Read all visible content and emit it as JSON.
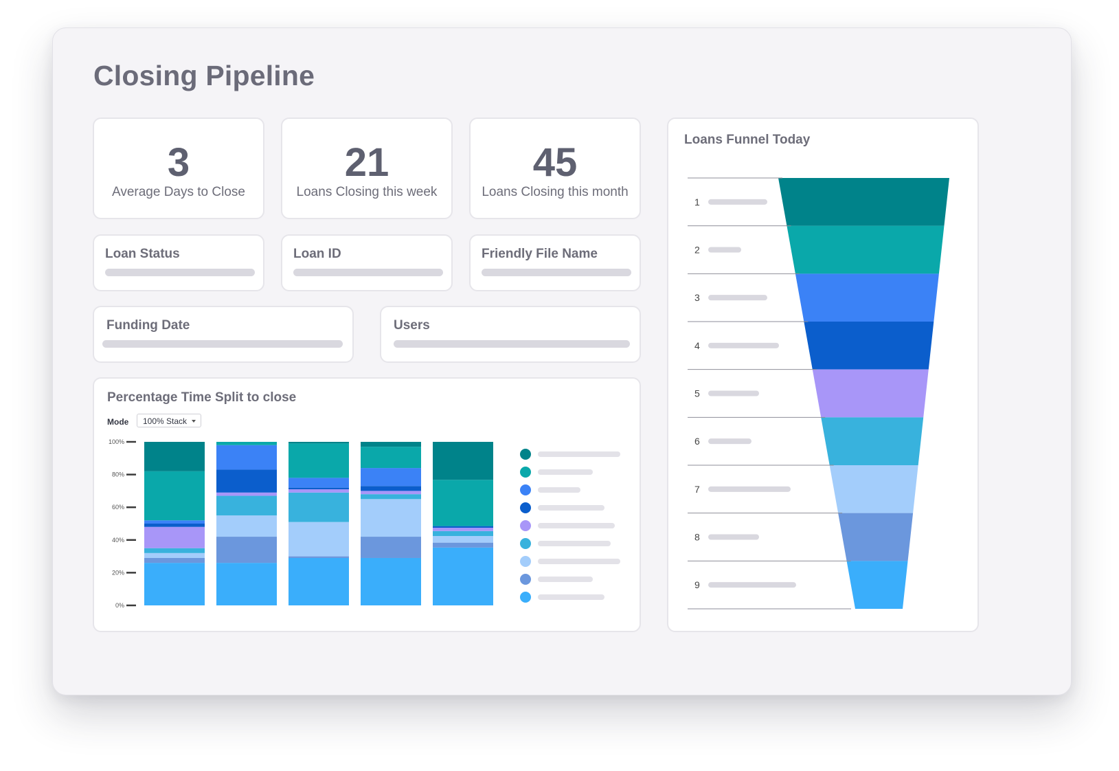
{
  "page": {
    "title": "Closing Pipeline"
  },
  "kpis": [
    {
      "value": "3",
      "label": "Average Days to Close"
    },
    {
      "value": "21",
      "label": "Loans Closing this week"
    },
    {
      "value": "45",
      "label": "Loans Closing this month"
    }
  ],
  "filters": [
    {
      "label": "Loan Status"
    },
    {
      "label": "Loan ID"
    },
    {
      "label": "Friendly File Name"
    },
    {
      "label": "Funding Date"
    },
    {
      "label": "Users"
    }
  ],
  "colors": {
    "s1": "#00838a",
    "s2": "#0aa8aa",
    "s3": "#3b82f6",
    "s4": "#0b5ecc",
    "s5": "#a896f8",
    "s6": "#38b2dd",
    "s7": "#a3cdfb",
    "s8": "#6b97dd",
    "s9": "#3aaefb"
  },
  "chart_data": [
    {
      "type": "bar",
      "stacked": "percent",
      "title": "Percentage Time Split to close",
      "mode": {
        "label": "Mode",
        "value": "100% Stack"
      },
      "categories": [
        "",
        "",
        "",
        "",
        ""
      ],
      "ylim": [
        0,
        100
      ],
      "yticks": [
        "0%",
        "20%",
        "40%",
        "60%",
        "80%",
        "100%"
      ],
      "legend_position": "right",
      "series_count": 9,
      "stack_bottom_to_top": [
        {
          "color": "#3aaefb",
          "values": [
            26,
            26,
            29,
            29,
            35
          ]
        },
        {
          "color": "#6b97dd",
          "values": [
            3,
            16,
            1,
            13,
            3
          ]
        },
        {
          "color": "#a3cdfb",
          "values": [
            3,
            13,
            21,
            23,
            4
          ]
        },
        {
          "color": "#38b2dd",
          "values": [
            3,
            12,
            18,
            3,
            3
          ]
        },
        {
          "color": "#a896f8",
          "values": [
            13,
            2,
            2,
            2,
            2
          ]
        },
        {
          "color": "#0b5ecc",
          "values": [
            2,
            14,
            1,
            3,
            1
          ]
        },
        {
          "color": "#3b82f6",
          "values": [
            2,
            15,
            6,
            11,
            0
          ]
        },
        {
          "color": "#0aa8aa",
          "values": [
            30,
            2,
            21,
            13,
            28
          ]
        },
        {
          "color": "#00838a",
          "values": [
            18,
            0,
            1,
            3,
            23
          ]
        }
      ]
    },
    {
      "type": "funnel",
      "title": "Loans Funnel Today",
      "stages": [
        "1",
        "2",
        "3",
        "4",
        "5",
        "6",
        "7",
        "8",
        "9"
      ],
      "colors": [
        "#00838a",
        "#0aa8aa",
        "#3b82f6",
        "#0b5ecc",
        "#a896f8",
        "#38b2dd",
        "#a3cdfb",
        "#6b97dd",
        "#3aaefb"
      ]
    }
  ]
}
